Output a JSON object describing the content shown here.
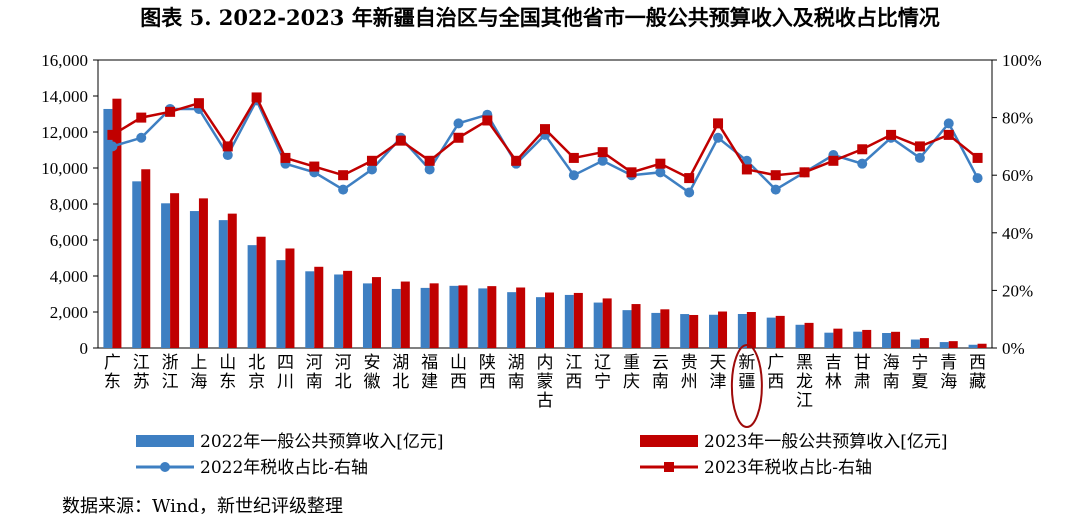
{
  "title": "图表 5. 2022-2023 年新疆自治区与全国其他省市一般公共预算收入及税收占比情况",
  "source": "数据来源：Wind，新世纪评级整理",
  "colors": {
    "bar2022": "#3E7FC2",
    "bar2023": "#C00000",
    "line2022": "#3E7FC2",
    "line2023": "#C00000",
    "highlight": "#9E0A0A"
  },
  "chart_data": {
    "type": "bar",
    "categories": [
      "广东",
      "江苏",
      "浙江",
      "上海",
      "山东",
      "北京",
      "四川",
      "河南",
      "河北",
      "安徽",
      "湖北",
      "福建",
      "山西",
      "陕西",
      "湖南",
      "内蒙古",
      "江西",
      "辽宁",
      "重庆",
      "云南",
      "贵州",
      "天津",
      "新疆",
      "广西",
      "黑龙江",
      "吉林",
      "甘肃",
      "海南",
      "宁夏",
      "青海",
      "西藏"
    ],
    "highlight_category": "新疆",
    "y_left": {
      "ticks": [
        "0",
        "2,000",
        "4,000",
        "6,000",
        "8,000",
        "10,000",
        "12,000",
        "14,000",
        "16,000"
      ],
      "lim": [
        0,
        16000
      ]
    },
    "y_right": {
      "ticks": [
        "0%",
        "20%",
        "40%",
        "60%",
        "80%",
        "100%"
      ],
      "lim": [
        0,
        1
      ]
    },
    "legend": [
      "2022年一般公共预算收入[亿元]",
      "2023年一般公共预算收入[亿元]",
      "2022年税收占比-右轴",
      "2023年税收占比-右轴"
    ],
    "series": [
      {
        "name": "2022年一般公共预算收入[亿元]",
        "kind": "bar",
        "axis": "left",
        "values": [
          13280,
          9259,
          8039,
          7608,
          7104,
          5714,
          4882,
          4261,
          4084,
          3589,
          3281,
          3339,
          3453,
          3311,
          3102,
          2824,
          2948,
          2524,
          2103,
          1949,
          1886,
          1846,
          1889,
          1688,
          1290,
          851,
          907,
          833,
          470,
          329,
          180
        ]
      },
      {
        "name": "2023年一般公共预算收入[亿元]",
        "kind": "bar",
        "axis": "left",
        "values": [
          13851,
          9930,
          8600,
          8313,
          7465,
          6181,
          5529,
          4512,
          4286,
          3939,
          3692,
          3592,
          3479,
          3437,
          3361,
          3083,
          3059,
          2754,
          2441,
          2149,
          1834,
          2027,
          2000,
          1784,
          1396,
          1075,
          1004,
          900,
          550,
          381,
          237
        ]
      },
      {
        "name": "2022年税收占比-右轴",
        "kind": "line",
        "axis": "right",
        "values": [
          0.7,
          0.73,
          0.83,
          0.83,
          0.67,
          0.86,
          0.64,
          0.61,
          0.55,
          0.62,
          0.73,
          0.62,
          0.78,
          0.81,
          0.64,
          0.74,
          0.6,
          0.65,
          0.6,
          0.61,
          0.54,
          0.73,
          0.65,
          0.55,
          0.61,
          0.67,
          0.64,
          0.73,
          0.66,
          0.78,
          0.59
        ]
      },
      {
        "name": "2023年税收占比-右轴",
        "kind": "line",
        "axis": "right",
        "values": [
          0.74,
          0.8,
          0.82,
          0.85,
          0.7,
          0.87,
          0.66,
          0.63,
          0.6,
          0.65,
          0.72,
          0.65,
          0.73,
          0.79,
          0.65,
          0.76,
          0.66,
          0.68,
          0.61,
          0.64,
          0.59,
          0.78,
          0.62,
          0.6,
          0.61,
          0.65,
          0.69,
          0.74,
          0.7,
          0.74,
          0.66
        ]
      }
    ]
  }
}
